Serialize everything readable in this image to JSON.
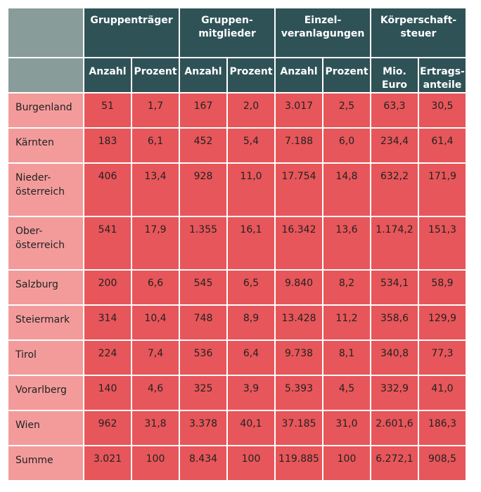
{
  "groups": [
    "Gruppenträger",
    "Gruppen-\nmitglieder",
    "Einzel-\nveranlagungen",
    "Körperschaft-\nsteuer"
  ],
  "subheaders": [
    "Anzahl",
    "Prozent",
    "Anzahl",
    "Prozent",
    "Anzahl",
    "Prozent",
    "Mio.\nEuro",
    "Ertrags-\nanteile"
  ],
  "rows": [
    {
      "name": "Burgenland",
      "values": [
        "51",
        "1,7",
        "167",
        "2,0",
        "3.017",
        "2,5",
        "63,3",
        "30,5"
      ]
    },
    {
      "name": "Kärnten",
      "values": [
        "183",
        "6,1",
        "452",
        "5,4",
        "7.188",
        "6,0",
        "234,4",
        "61,4"
      ]
    },
    {
      "name": "Nieder-\nösterreich",
      "values": [
        "406",
        "13,4",
        "928",
        "11,0",
        "17.754",
        "14,8",
        "632,2",
        "171,9"
      ]
    },
    {
      "name": "Ober-\nösterreich",
      "values": [
        "541",
        "17,9",
        "1.355",
        "16,1",
        "16.342",
        "13,6",
        "1.174,2",
        "151,3"
      ]
    },
    {
      "name": "Salzburg",
      "values": [
        "200",
        "6,6",
        "545",
        "6,5",
        "9.840",
        "8,2",
        "534,1",
        "58,9"
      ]
    },
    {
      "name": "Steiermark",
      "values": [
        "314",
        "10,4",
        "748",
        "8,9",
        "13.428",
        "11,2",
        "358,6",
        "129,9"
      ]
    },
    {
      "name": "Tirol",
      "values": [
        "224",
        "7,4",
        "536",
        "6,4",
        "9.738",
        "8,1",
        "340,8",
        "77,3"
      ]
    },
    {
      "name": "Vorarlberg",
      "values": [
        "140",
        "4,6",
        "325",
        "3,9",
        "5.393",
        "4,5",
        "332,9",
        "41,0"
      ]
    },
    {
      "name": "Wien",
      "values": [
        "962",
        "31,8",
        "3.378",
        "40,1",
        "37.185",
        "31,0",
        "2.601,6",
        "186,3"
      ]
    },
    {
      "name": "Summe",
      "values": [
        "3.021",
        "100",
        "8.434",
        "100",
        "119.885",
        "100",
        "6.272,1",
        "908,5"
      ]
    }
  ],
  "colors": {
    "header_dark": "#2f5257",
    "header_corner": "#889c9a",
    "name_cell": "#f39b9b",
    "value_cell": "#e7565a"
  }
}
